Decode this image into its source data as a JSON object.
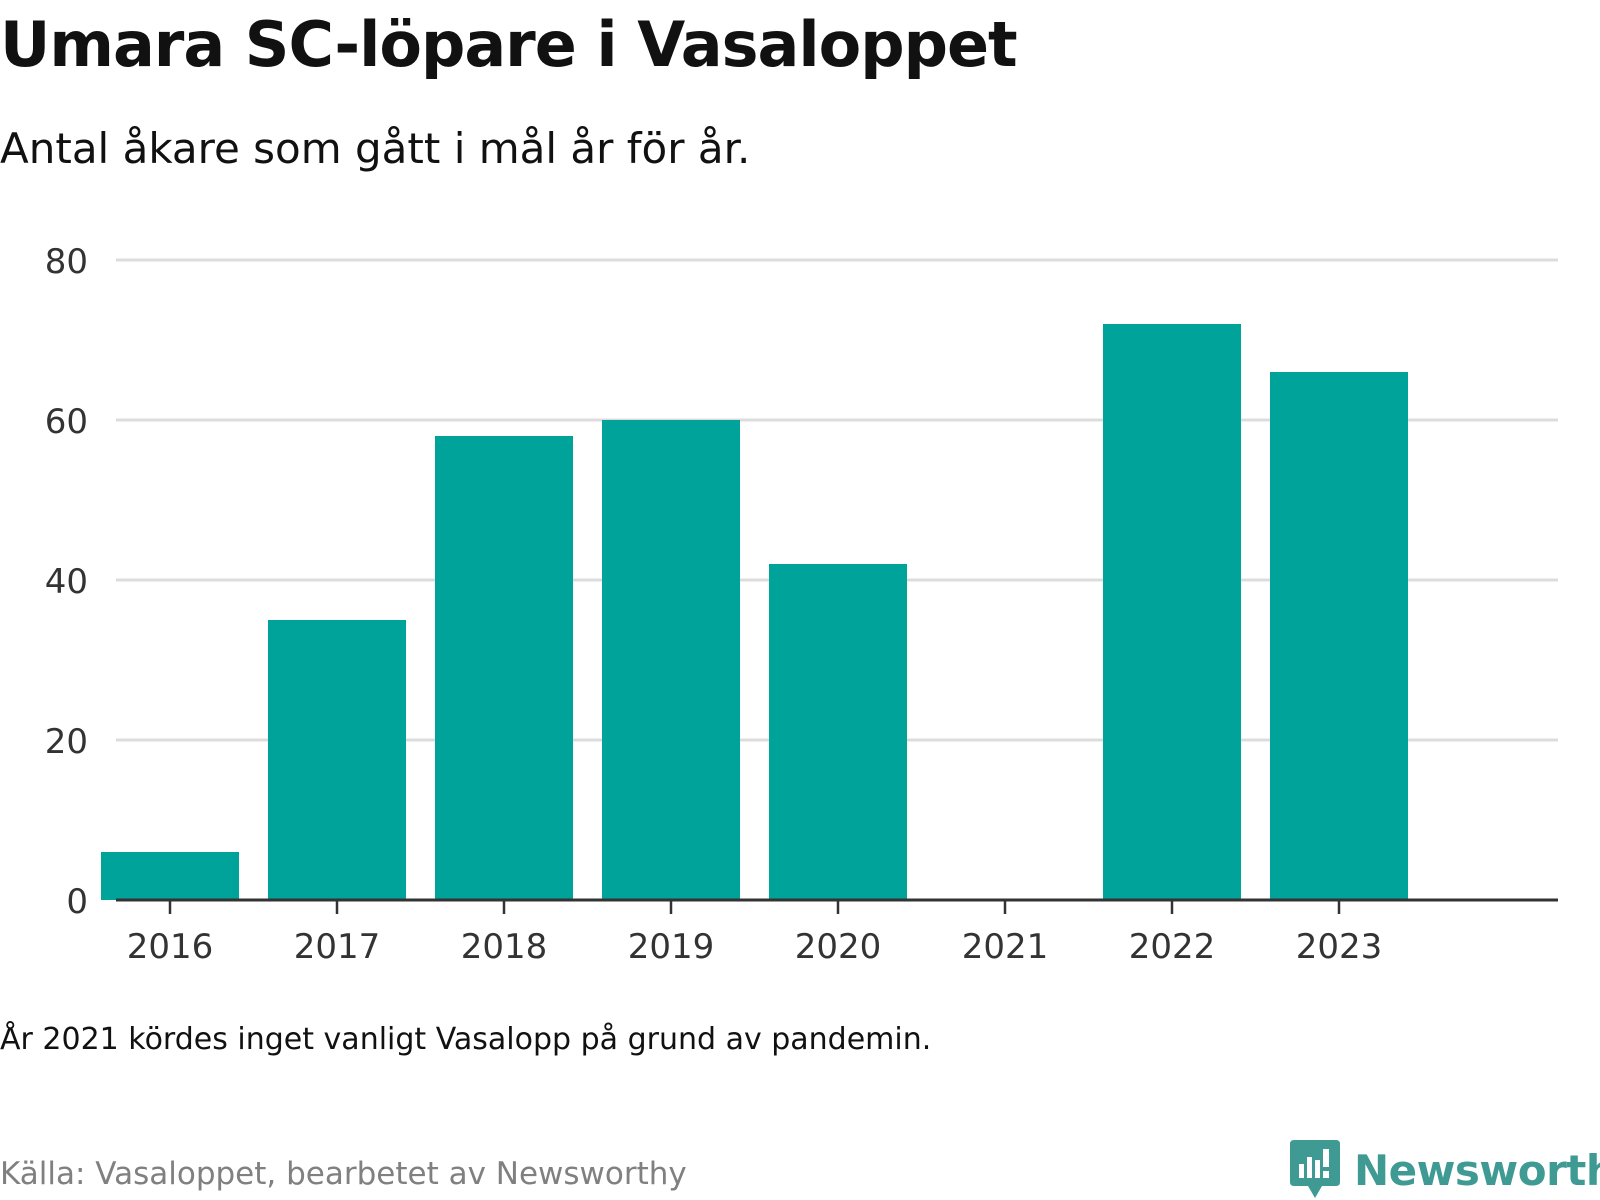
{
  "header": {
    "title": "Umara SC-löpare i Vasaloppet",
    "subtitle": "Antal åkare som gått i mål år för år."
  },
  "footer": {
    "note": "År 2021 kördes inget vanligt Vasalopp på grund av pandemin.",
    "source": "Källa: Vasaloppet, bearbetet av Newsworthy",
    "brand": "Newsworthy"
  },
  "colors": {
    "bar": "#00a39a",
    "grid": "#dcdcdc",
    "axis": "#333333",
    "brand": "#3f9a94"
  },
  "chart_data": {
    "type": "bar",
    "categories": [
      "2016",
      "2017",
      "2018",
      "2019",
      "2020",
      "2021",
      "2022",
      "2023"
    ],
    "values": [
      6,
      35,
      58,
      60,
      42,
      0,
      72,
      66
    ],
    "title": "Umara SC-löpare i Vasaloppet",
    "subtitle": "Antal åkare som gått i mål år för år.",
    "xlabel": "",
    "ylabel": "",
    "ylim": [
      0,
      80
    ],
    "yticks": [
      0,
      20,
      40,
      60,
      80
    ],
    "grid": true,
    "legend": "none"
  }
}
